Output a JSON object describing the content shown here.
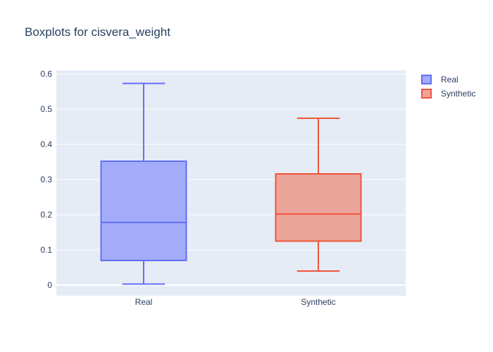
{
  "chart_data": {
    "type": "box",
    "title": "Boxplots for cisvera_weight",
    "xlabel": "",
    "ylabel": "",
    "categories": [
      "Real",
      "Synthetic"
    ],
    "ylim": [
      -0.03,
      0.61
    ],
    "yticks": [
      0,
      0.1,
      0.2,
      0.3,
      0.4,
      0.5,
      0.6
    ],
    "ytick_labels": [
      "0",
      "0.1",
      "0.2",
      "0.3",
      "0.4",
      "0.5",
      "0.6"
    ],
    "grid": true,
    "legend_position": "top-right",
    "series": [
      {
        "name": "Real",
        "category": "Real",
        "min": 0.003,
        "q1": 0.07,
        "median": 0.178,
        "q3": 0.352,
        "max": 0.573,
        "line_color": "#636efa",
        "fill_color": "#a4abf8"
      },
      {
        "name": "Synthetic",
        "category": "Synthetic",
        "min": 0.04,
        "q1": 0.125,
        "median": 0.202,
        "q3": 0.316,
        "max": 0.474,
        "line_color": "#ef553b",
        "fill_color": "#eba59b"
      }
    ],
    "colors": {
      "plot_bg": "#e5ecf6",
      "grid": "#ffffff",
      "text": "#2a3f5f"
    }
  }
}
